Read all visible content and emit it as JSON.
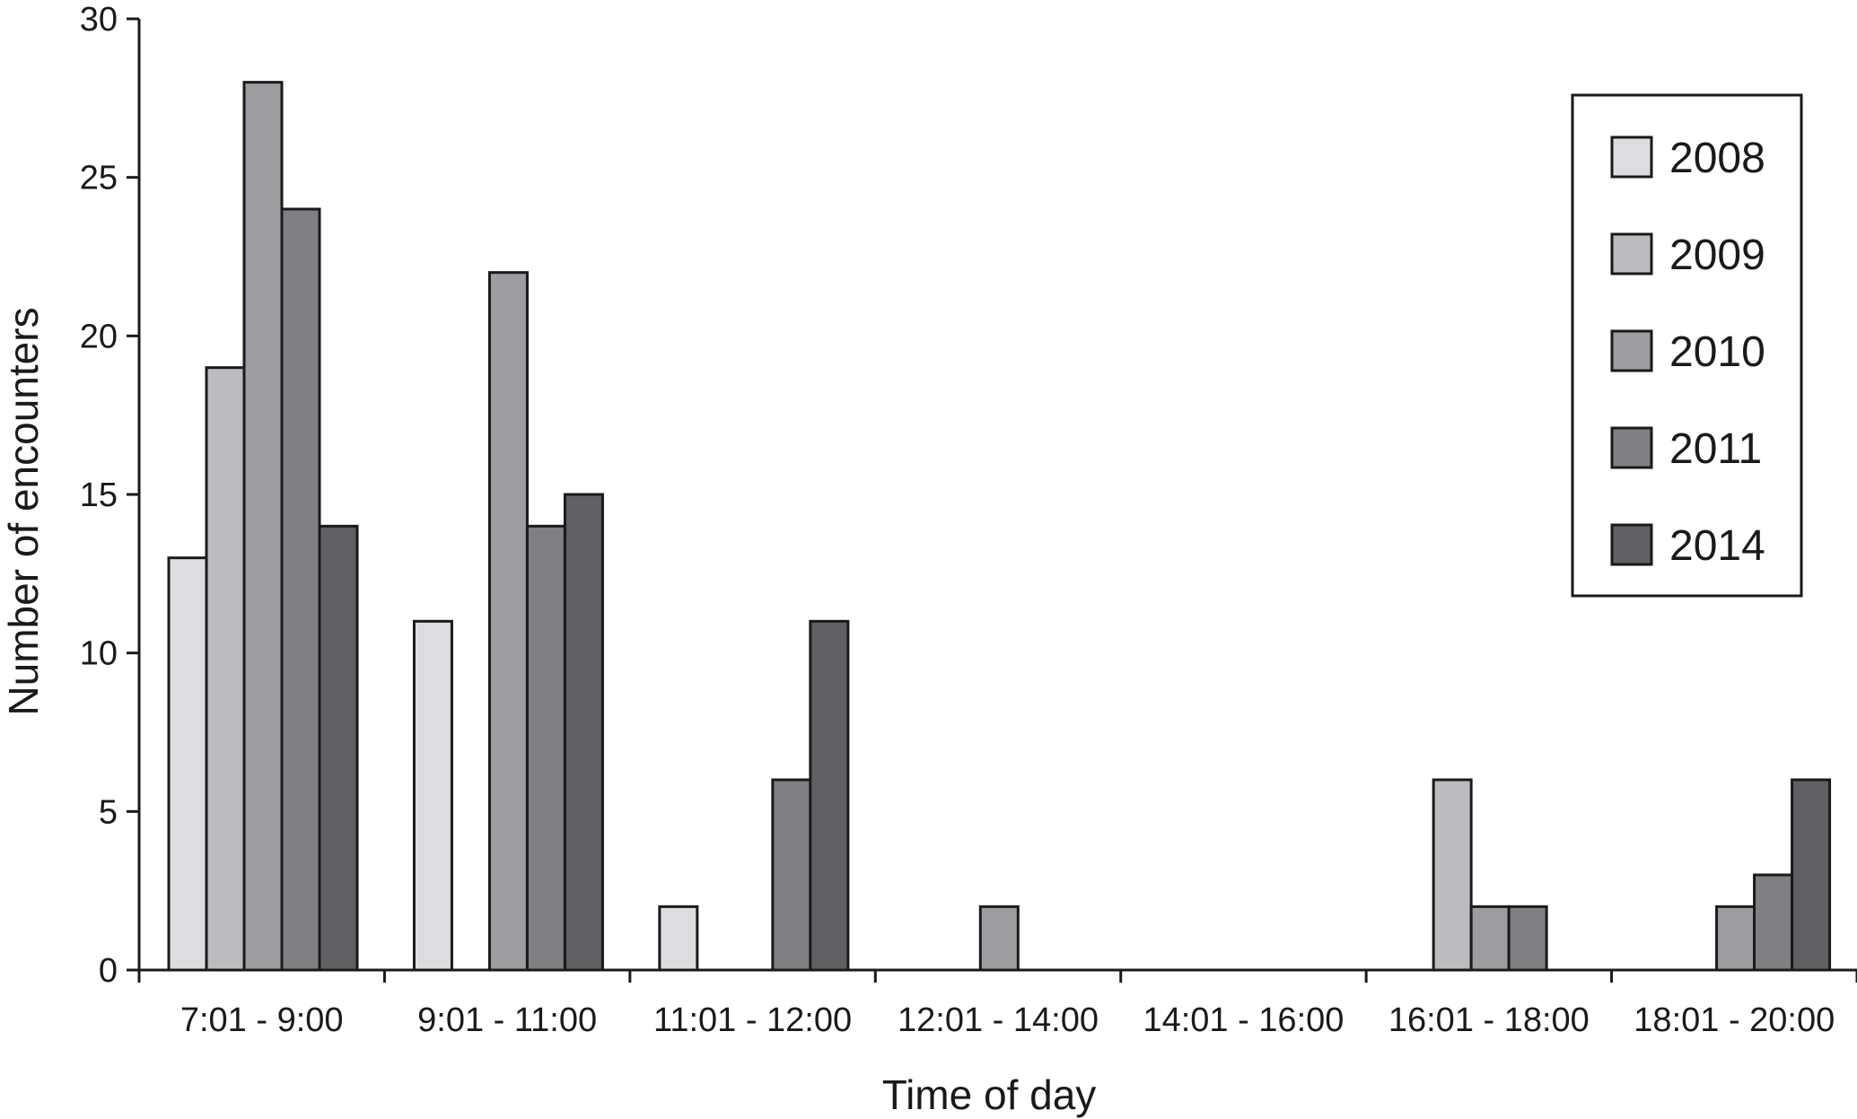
{
  "chart_data": {
    "type": "bar",
    "xlabel": "Time of day",
    "ylabel": "Number of encounters",
    "ylim": [
      0,
      30
    ],
    "yticks": [
      0,
      5,
      10,
      15,
      20,
      25,
      30
    ],
    "grid": false,
    "legend_position": "top-right",
    "categories": [
      "7:01 - 9:00",
      "9:01 - 11:00",
      "11:01 - 12:00",
      "12:01 - 14:00",
      "14:01 - 16:00",
      "16:01 - 18:00",
      "18:01 - 20:00"
    ],
    "series": [
      {
        "name": "2008",
        "color": "#dcdde0",
        "values": [
          13,
          11,
          2,
          0,
          0,
          0,
          0
        ]
      },
      {
        "name": "2009",
        "color": "#bbbcbf",
        "values": [
          19,
          0,
          0,
          0,
          0,
          6,
          0
        ]
      },
      {
        "name": "2010",
        "color": "#9c9da1",
        "values": [
          28,
          22,
          0,
          2,
          0,
          2,
          2
        ]
      },
      {
        "name": "2011",
        "color": "#7f8084",
        "values": [
          24,
          14,
          6,
          0,
          0,
          2,
          3
        ]
      },
      {
        "name": "2014",
        "color": "#5f6064",
        "values": [
          14,
          15,
          11,
          0,
          0,
          0,
          6
        ]
      }
    ]
  }
}
